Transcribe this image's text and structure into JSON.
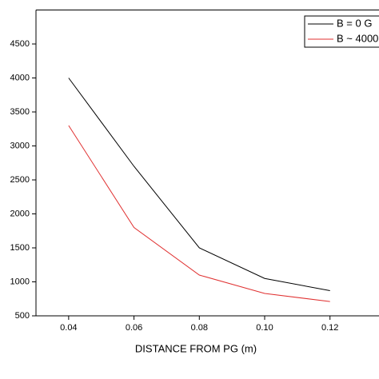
{
  "chart_data": {
    "type": "line",
    "x_label": "DISTANCE FROM PG (m)",
    "x": [
      0.04,
      0.06,
      0.08,
      0.1,
      0.12
    ],
    "series": [
      {
        "name": "B = 0 G",
        "color": "#000000",
        "values": [
          4000,
          2700,
          1500,
          1050,
          870
        ]
      },
      {
        "name": "B ~ 4000",
        "color": "#e03030",
        "values": [
          3300,
          1800,
          1100,
          830,
          710
        ]
      }
    ],
    "xlim": [
      0.03,
      0.135
    ],
    "ylim": [
      500,
      5000
    ],
    "xticks": [
      0.04,
      0.06,
      0.08,
      {
        "value": 0.1,
        "label": "0.10"
      },
      0.12
    ],
    "yticks": [
      500,
      1000,
      1500,
      2000,
      2500,
      3000,
      3500,
      4000,
      4500
    ],
    "legend": "top-right"
  }
}
